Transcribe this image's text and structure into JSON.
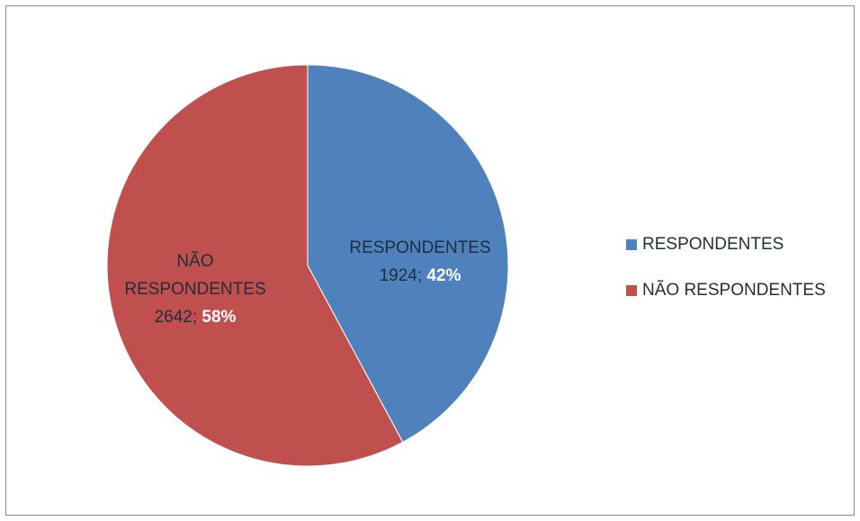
{
  "chart_data": {
    "type": "pie",
    "title": "",
    "slices": [
      {
        "label": "RESPONDENTES",
        "value": 1924,
        "value_text": "1924",
        "percent_text": "42%",
        "color": "#4f81bd"
      },
      {
        "label": "NÃO RESPONDENTES",
        "value": 2642,
        "value_text": "2642",
        "percent_text": "58%",
        "color": "#c0504d"
      }
    ],
    "legend_position": "right",
    "data_label_separator": "; "
  }
}
